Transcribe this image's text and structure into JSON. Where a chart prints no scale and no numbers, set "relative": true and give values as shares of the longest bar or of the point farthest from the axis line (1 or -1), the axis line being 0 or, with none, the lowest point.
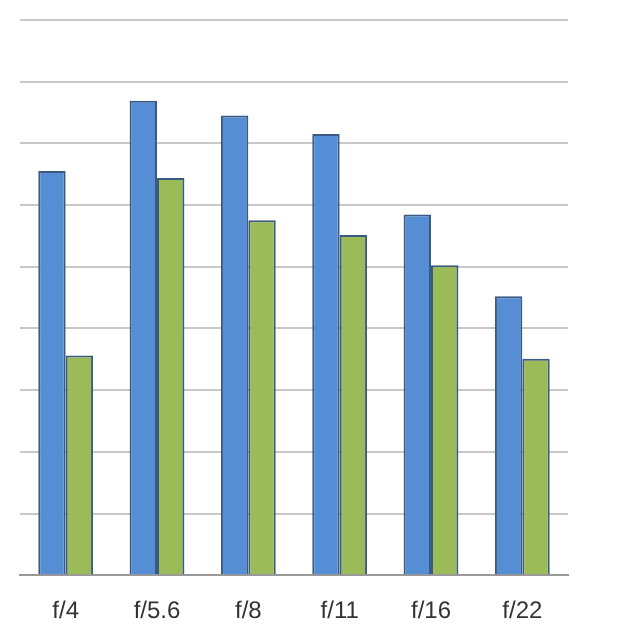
{
  "chart_data": {
    "type": "bar",
    "relative": true,
    "grid": "y",
    "categories": [
      "f/4",
      "f/5.6",
      "f/8",
      "f/11",
      "f/16",
      "f/22"
    ],
    "series": [
      {
        "color": "#558ed5",
        "values": [
          0.852,
          1,
          0.969,
          0.93,
          0.76,
          0.588
        ]
      },
      {
        "color": "#9bbb59",
        "values": [
          0.463,
          0.837,
          0.748,
          0.717,
          0.653,
          0.456
        ]
      }
    ]
  }
}
